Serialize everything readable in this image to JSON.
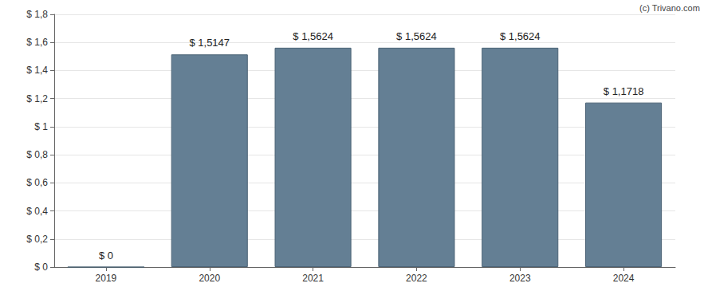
{
  "chart_data": {
    "type": "bar",
    "annotation": "(c) Trivano.com",
    "categories": [
      "2019",
      "2020",
      "2021",
      "2022",
      "2023",
      "2024"
    ],
    "values": [
      0,
      1.5147,
      1.5624,
      1.5624,
      1.5624,
      1.1718
    ],
    "value_labels": [
      "$ 0",
      "$ 1,5147",
      "$ 1,5624",
      "$ 1,5624",
      "$ 1,5624",
      "$ 1,1718"
    ],
    "data_labels": true,
    "color": "#647f94",
    "ylim": [
      0,
      1.8
    ],
    "yticks": [
      {
        "value": 0,
        "label": "$ 0"
      },
      {
        "value": 0.2,
        "label": "$ 0,2"
      },
      {
        "value": 0.4,
        "label": "$ 0,4"
      },
      {
        "value": 0.6,
        "label": "$ 0,6"
      },
      {
        "value": 0.8,
        "label": "$ 0,8"
      },
      {
        "value": 1,
        "label": "$ 1"
      },
      {
        "value": 1.2,
        "label": "$ 1,2"
      },
      {
        "value": 1.4,
        "label": "$ 1,4"
      },
      {
        "value": 1.6,
        "label": "$ 1,6"
      },
      {
        "value": 1.8,
        "label": "$ 1,8"
      }
    ],
    "grid": true
  }
}
